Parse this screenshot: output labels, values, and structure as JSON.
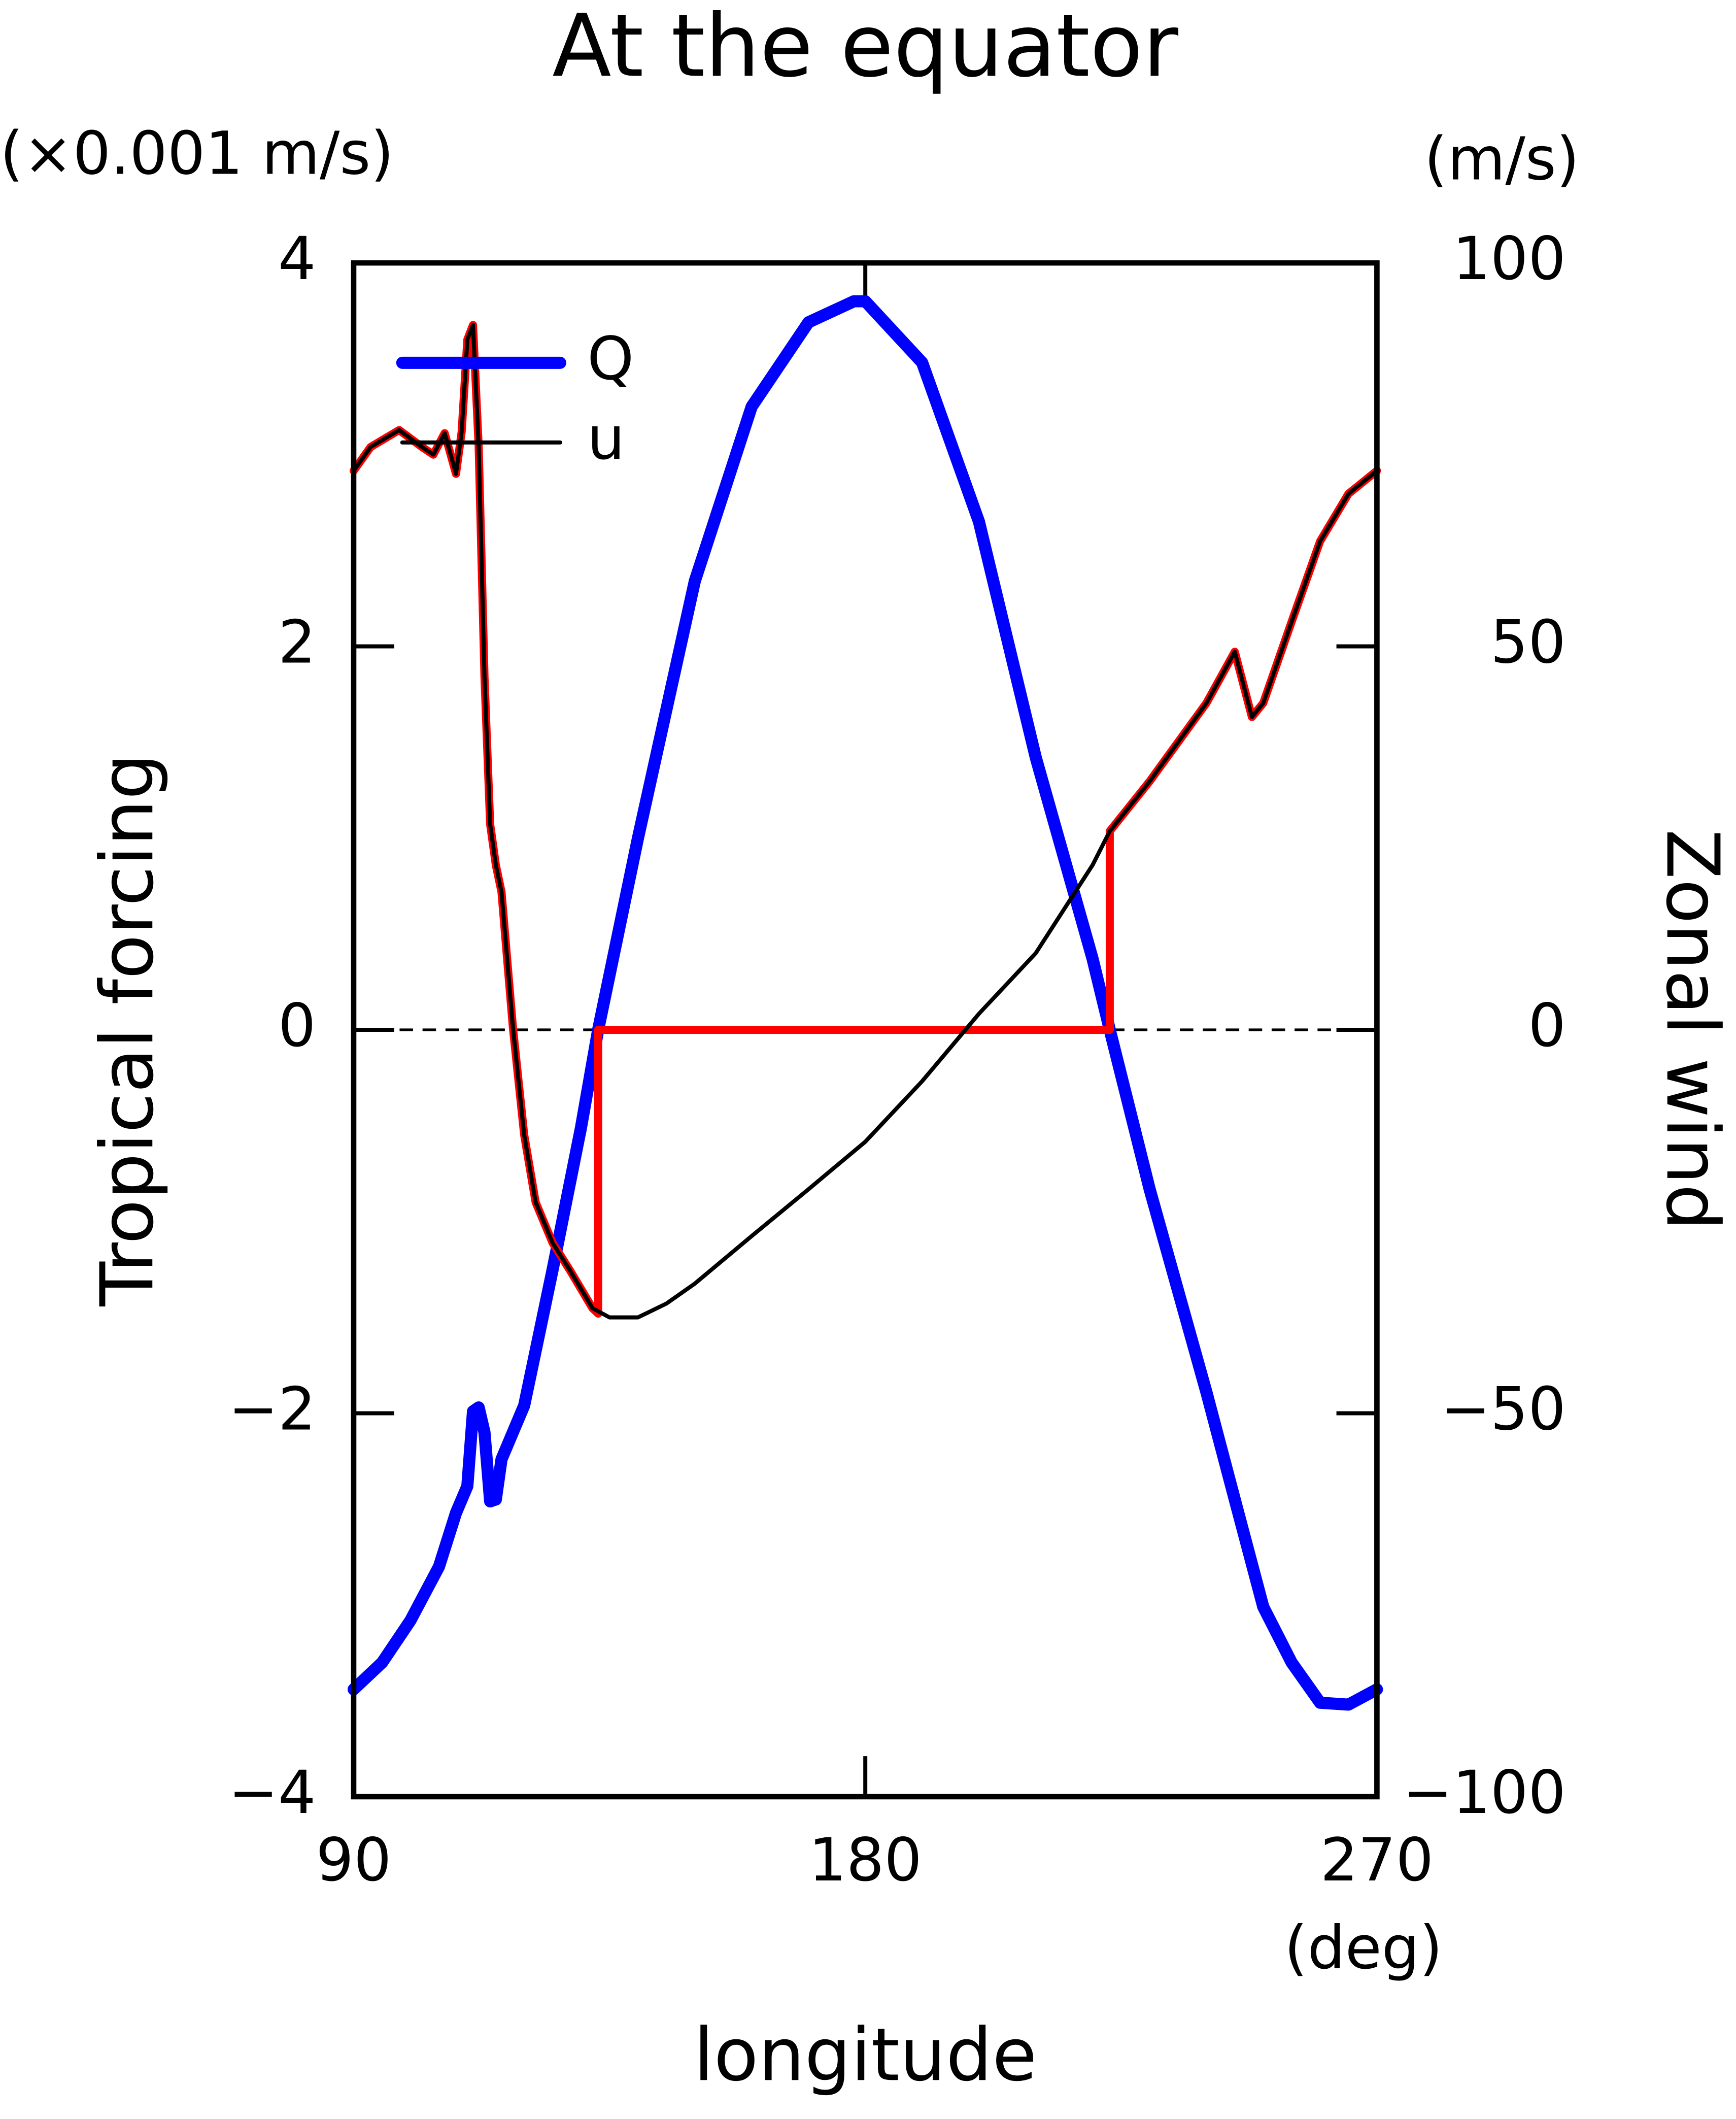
{
  "chart_data": {
    "type": "line",
    "title": "At the equator",
    "y_unit": "(×0.001 m/s)",
    "y2_unit": "(m/s)",
    "ylabel": "Tropical forcing",
    "y2label": "Zonal wind",
    "xlabel": "longitude",
    "x_unit": "(deg)",
    "xlim": [
      90,
      270
    ],
    "xticks": [
      90,
      180,
      270
    ],
    "ylim": [
      -4,
      4
    ],
    "yticks": [
      {
        "value": -4,
        "label": "−4"
      },
      {
        "value": -2,
        "label": "−2"
      },
      0,
      2,
      4
    ],
    "y2lim": [
      -100,
      100
    ],
    "y2ticks": [
      100,
      50,
      0,
      {
        "value": -50,
        "label": "−50"
      },
      {
        "value": -100,
        "label": "−100"
      }
    ],
    "reference_line": 0,
    "legend": "upper left",
    "series": [
      {
        "name": "Q",
        "color": "#0000ff",
        "x": [
          90,
          95,
          100,
          105,
          108,
          110,
          111,
          112,
          113,
          114,
          115,
          116,
          120,
          125,
          130,
          133,
          140,
          150,
          160,
          170,
          178,
          180,
          190,
          200,
          210,
          220,
          223,
          230,
          240,
          245,
          250,
          255,
          260,
          265,
          270
        ],
        "values": [
          -3.44,
          -3.3,
          -3.08,
          -2.8,
          -2.52,
          -2.38,
          -1.99,
          -1.97,
          -2.1,
          -2.46,
          -2.45,
          -2.24,
          -1.96,
          -1.25,
          -0.51,
          0,
          1.0,
          2.34,
          3.25,
          3.69,
          3.8,
          3.8,
          3.48,
          2.65,
          1.42,
          0.37,
          0,
          -0.83,
          -1.89,
          -2.45,
          -3.01,
          -3.3,
          -3.51,
          -3.52,
          -3.44
        ]
      },
      {
        "color": "#ff0000",
        "axis": "y2",
        "x": [
          90,
          93,
          98,
          102,
          104,
          106,
          108,
          109,
          110,
          111,
          112,
          113,
          114,
          115,
          116,
          118,
          120,
          122,
          125,
          128,
          132,
          133,
          133,
          223,
          223,
          230,
          240,
          245,
          248,
          250,
          255,
          260,
          265,
          270
        ],
        "values": [
          72.9,
          76,
          78.2,
          76,
          75,
          77.8,
          72.5,
          78,
          90,
          91.9,
          76,
          46,
          26.8,
          21.5,
          18,
          0.4,
          -13.7,
          -22.5,
          -27.8,
          -31.3,
          -36.3,
          -37,
          0,
          0,
          25.9,
          32.4,
          42.6,
          49.3,
          40.8,
          42.6,
          53.2,
          63.7,
          69.9,
          72.9
        ]
      },
      {
        "name": "u",
        "color": "#000000",
        "axis": "y2",
        "x": [
          90,
          93,
          98,
          102,
          104,
          106,
          108,
          109,
          110,
          111,
          112,
          113,
          114,
          115,
          116,
          118,
          120,
          122,
          125,
          128,
          132,
          135,
          140,
          145,
          150,
          160,
          170,
          180,
          190,
          200,
          210,
          220,
          223,
          230,
          240,
          245,
          248,
          250,
          255,
          260,
          265,
          270
        ],
        "values": [
          72.9,
          76,
          78.2,
          76,
          75,
          77.8,
          72.5,
          78,
          90,
          91.9,
          76,
          46,
          26.8,
          21.5,
          18,
          0.4,
          -13.7,
          -22.5,
          -27.8,
          -31.3,
          -36.3,
          -37.5,
          -37.5,
          -35.7,
          -33.1,
          -26.9,
          -20.8,
          -14.6,
          -6.7,
          2.1,
          10,
          21.5,
          25.9,
          32.4,
          42.6,
          49.3,
          40.8,
          42.6,
          53.2,
          63.7,
          69.9,
          72.9
        ]
      }
    ]
  }
}
